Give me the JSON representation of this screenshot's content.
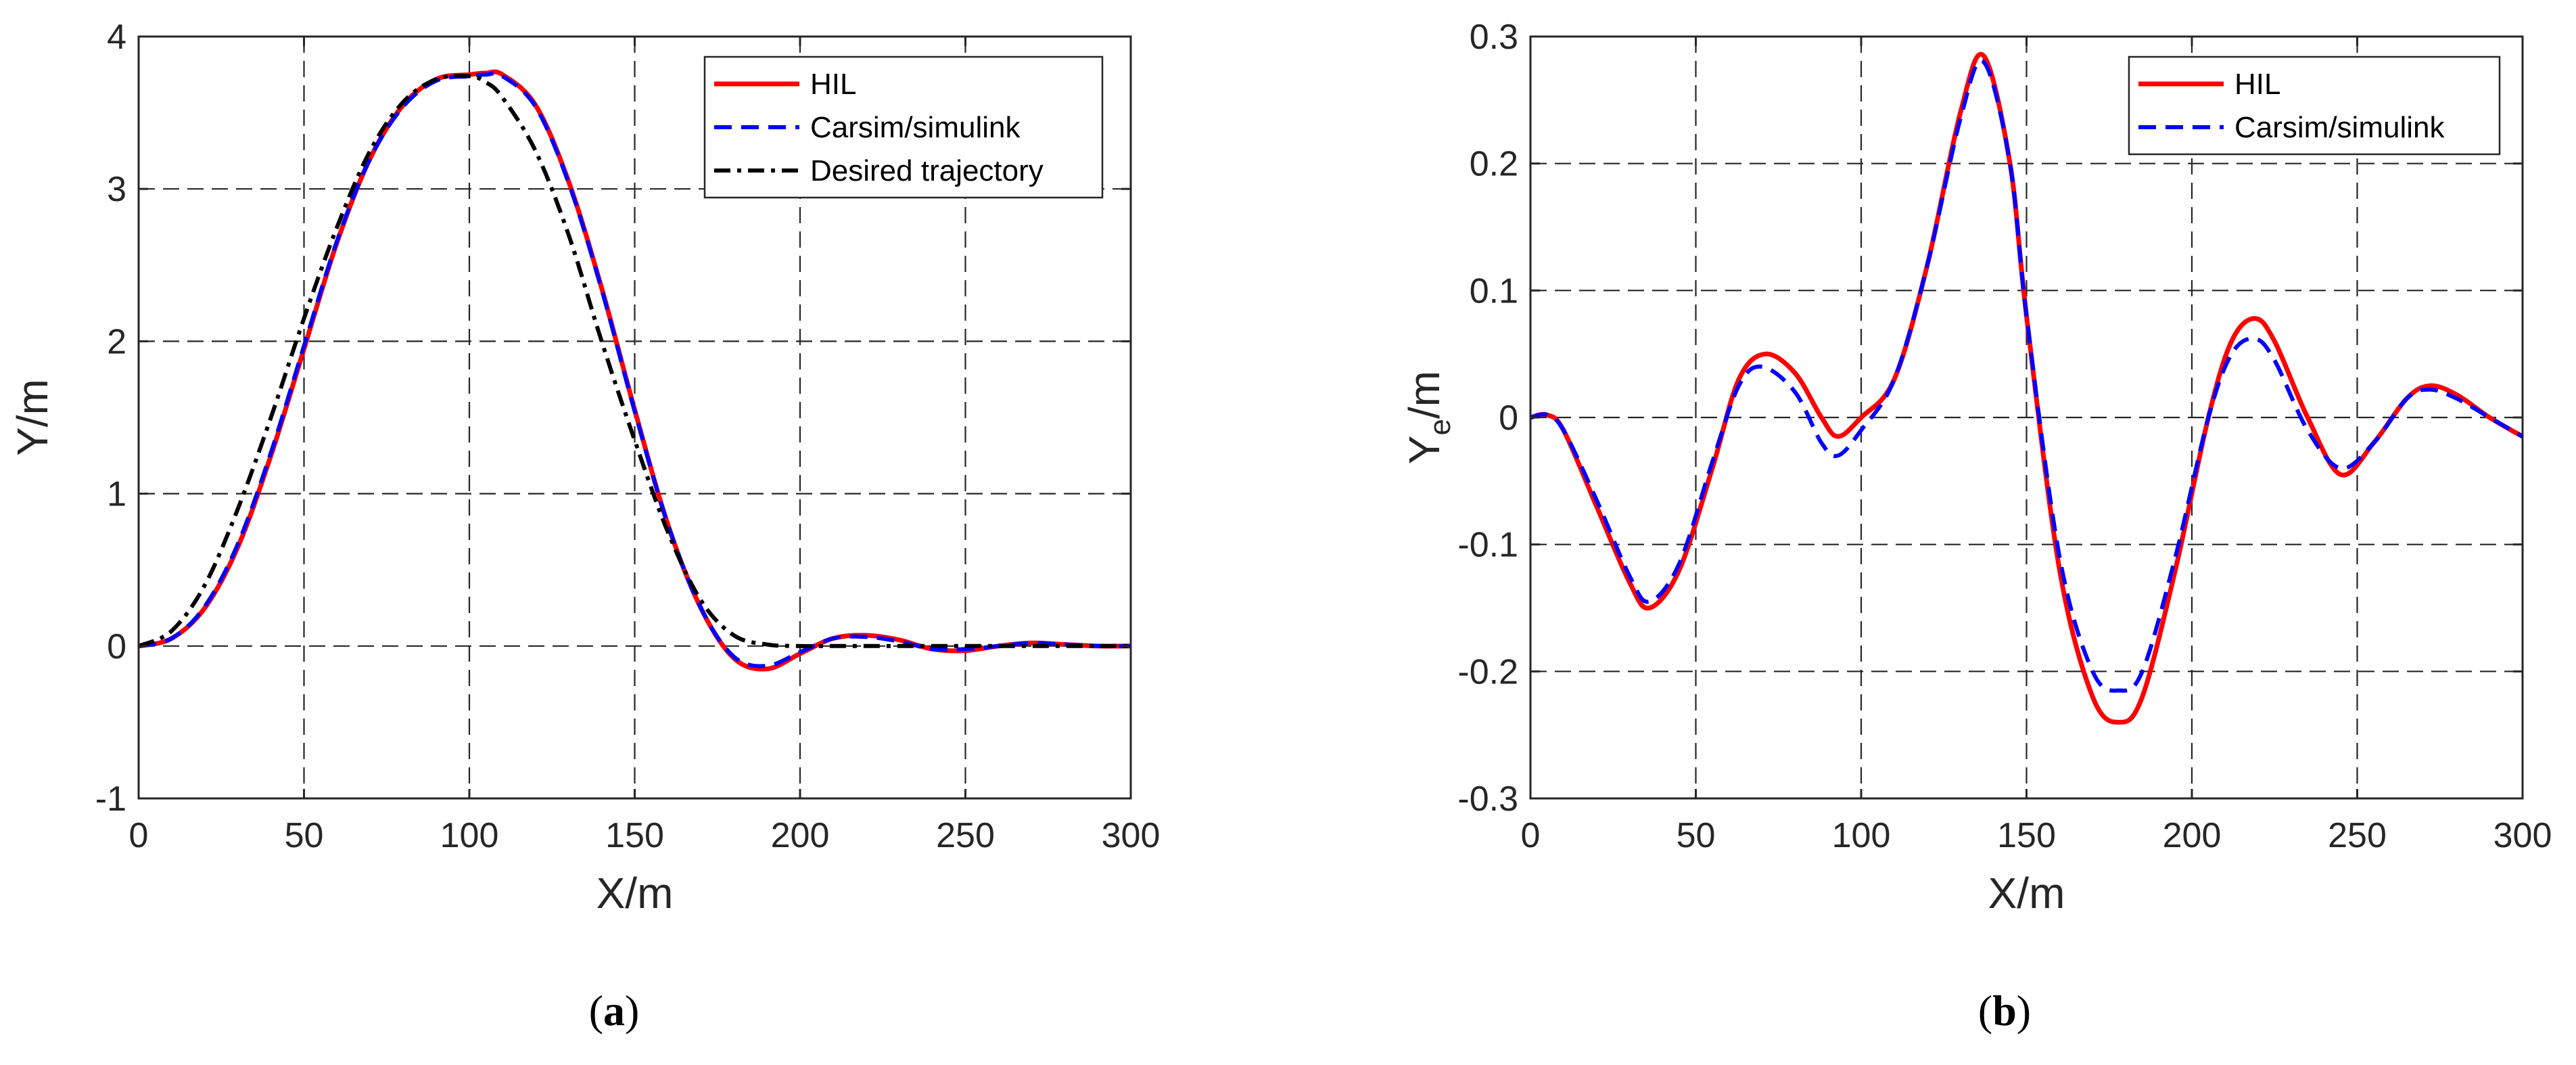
{
  "chart_data": [
    {
      "type": "line",
      "caption_open": "(",
      "caption_letter": "a",
      "caption_close": ")",
      "xlabel": "X/m",
      "ylabel": "Y/m",
      "xlim": [
        0,
        300
      ],
      "ylim": [
        -1,
        4
      ],
      "xticks": [
        0,
        50,
        100,
        150,
        200,
        250,
        300
      ],
      "yticks": [
        -1,
        0,
        1,
        2,
        3,
        4
      ],
      "grid": true,
      "legend_position": "top-right",
      "series": [
        {
          "name": "HIL",
          "color": "#ff0000",
          "style": "solid",
          "x": [
            0,
            10,
            20,
            30,
            40,
            50,
            60,
            70,
            80,
            90,
            100,
            105,
            110,
            120,
            130,
            140,
            150,
            160,
            170,
            180,
            190,
            200,
            210,
            220,
            230,
            240,
            250,
            260,
            270,
            280,
            290,
            300
          ],
          "y": [
            0,
            0.05,
            0.25,
            0.65,
            1.25,
            1.95,
            2.65,
            3.2,
            3.55,
            3.72,
            3.75,
            3.76,
            3.75,
            3.55,
            3.05,
            2.35,
            1.55,
            0.8,
            0.25,
            -0.08,
            -0.15,
            -0.05,
            0.05,
            0.07,
            0.04,
            -0.02,
            -0.03,
            0.0,
            0.02,
            0.01,
            0.0,
            0.0
          ]
        },
        {
          "name": "Carsim/simulink",
          "color": "#0000ff",
          "style": "dashed",
          "x": [
            0,
            10,
            20,
            30,
            40,
            50,
            60,
            70,
            80,
            90,
            100,
            105,
            110,
            120,
            130,
            140,
            150,
            160,
            170,
            180,
            190,
            200,
            210,
            220,
            230,
            240,
            250,
            260,
            270,
            280,
            290,
            300
          ],
          "y": [
            0,
            0.05,
            0.26,
            0.67,
            1.27,
            1.97,
            2.66,
            3.2,
            3.54,
            3.71,
            3.74,
            3.75,
            3.74,
            3.54,
            3.04,
            2.34,
            1.54,
            0.8,
            0.25,
            -0.07,
            -0.13,
            -0.04,
            0.05,
            0.06,
            0.03,
            -0.02,
            -0.02,
            0.0,
            0.02,
            0.01,
            0.0,
            0.0
          ]
        },
        {
          "name": "Desired trajectory",
          "color": "#000000",
          "style": "dashdot",
          "x": [
            0,
            10,
            20,
            30,
            40,
            50,
            60,
            70,
            80,
            90,
            100,
            105,
            110,
            120,
            130,
            140,
            150,
            160,
            170,
            180,
            190,
            200,
            210,
            220,
            230,
            240,
            250,
            260,
            270,
            280,
            290,
            300
          ],
          "y": [
            0,
            0.1,
            0.4,
            0.9,
            1.5,
            2.15,
            2.75,
            3.25,
            3.57,
            3.72,
            3.74,
            3.7,
            3.6,
            3.25,
            2.7,
            2.0,
            1.35,
            0.75,
            0.3,
            0.07,
            0.01,
            0.0,
            0.0,
            0.0,
            0.0,
            0.0,
            0.0,
            0.0,
            0.0,
            0.0,
            0.0,
            0.0
          ]
        }
      ]
    },
    {
      "type": "line",
      "caption_open": "(",
      "caption_letter": "b",
      "caption_close": ")",
      "xlabel": "X/m",
      "ylabel_main": "Y",
      "ylabel_sub": "e",
      "ylabel_tail": "/m",
      "xlim": [
        0,
        300
      ],
      "ylim": [
        -0.3,
        0.3
      ],
      "xticks": [
        0,
        50,
        100,
        150,
        200,
        250,
        300
      ],
      "yticks": [
        -0.3,
        -0.2,
        -0.1,
        0,
        0.1,
        0.2,
        0.3
      ],
      "grid": true,
      "legend_position": "top-right",
      "series": [
        {
          "name": "HIL",
          "color": "#ff0000",
          "style": "solid",
          "x": [
            0,
            5,
            10,
            20,
            30,
            36,
            45,
            55,
            63,
            71,
            80,
            88,
            93,
            100,
            110,
            120,
            130,
            137,
            145,
            150,
            160,
            170,
            178,
            185,
            195,
            205,
            212,
            219,
            225,
            235,
            245,
            255,
            265,
            272,
            280,
            290,
            300
          ],
          "y": [
            0,
            0.002,
            -0.01,
            -0.07,
            -0.13,
            -0.15,
            -0.12,
            -0.04,
            0.03,
            0.05,
            0.035,
            0.0,
            -0.015,
            0.0,
            0.03,
            0.12,
            0.24,
            0.285,
            0.2,
            0.08,
            -0.12,
            -0.22,
            -0.24,
            -0.22,
            -0.12,
            0.0,
            0.06,
            0.078,
            0.06,
            0.0,
            -0.045,
            -0.02,
            0.015,
            0.025,
            0.018,
            0.0,
            -0.015
          ]
        },
        {
          "name": "Carsim/simulink",
          "color": "#0000ff",
          "style": "dashed",
          "x": [
            0,
            5,
            10,
            20,
            30,
            36,
            45,
            55,
            63,
            70,
            80,
            88,
            93,
            100,
            110,
            120,
            130,
            137,
            145,
            150,
            160,
            170,
            178,
            185,
            195,
            205,
            212,
            219,
            225,
            235,
            245,
            255,
            265,
            272,
            280,
            290,
            300
          ],
          "y": [
            0,
            0.002,
            -0.01,
            -0.065,
            -0.125,
            -0.145,
            -0.115,
            -0.035,
            0.025,
            0.04,
            0.02,
            -0.02,
            -0.03,
            -0.01,
            0.03,
            0.12,
            0.235,
            0.28,
            0.2,
            0.08,
            -0.11,
            -0.2,
            -0.215,
            -0.2,
            -0.11,
            0.0,
            0.05,
            0.062,
            0.045,
            -0.01,
            -0.04,
            -0.02,
            0.015,
            0.022,
            0.015,
            0.0,
            -0.015
          ]
        }
      ]
    }
  ]
}
